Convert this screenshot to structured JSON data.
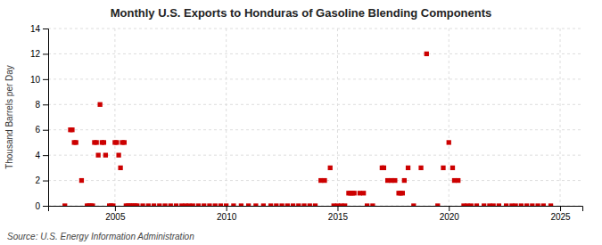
{
  "chart_data": {
    "type": "scatter",
    "title": "Monthly U.S. Exports to Honduras of Gasoline Blending Components",
    "y_label": "Thousand Barrels per Day",
    "annotations": [
      "Source: U.S. Energy Information Administration"
    ],
    "color": "#cc0000",
    "marker": "square",
    "grid": true,
    "xlim": [
      2002.0,
      2026.0
    ],
    "ylim": [
      0,
      14
    ],
    "xticks": [
      2005,
      2010,
      2015,
      2020,
      2025
    ],
    "yticks": [
      0,
      2,
      4,
      6,
      8,
      10,
      12,
      14
    ],
    "x": [
      2002.75,
      2003.0,
      2003.08,
      2003.17,
      2003.25,
      2003.5,
      2003.75,
      2003.83,
      2003.92,
      2004.0,
      2004.08,
      2004.17,
      2004.25,
      2004.33,
      2004.42,
      2004.5,
      2004.58,
      2004.75,
      2004.83,
      2004.92,
      2005.0,
      2005.08,
      2005.17,
      2005.25,
      2005.33,
      2005.42,
      2005.5,
      2005.58,
      2005.67,
      2005.75,
      2005.83,
      2005.92,
      2006.0,
      2006.25,
      2006.5,
      2006.75,
      2007.0,
      2007.25,
      2007.5,
      2007.75,
      2008.0,
      2008.17,
      2008.33,
      2008.5,
      2008.75,
      2009.0,
      2009.25,
      2009.5,
      2009.75,
      2010.0,
      2010.33,
      2010.67,
      2011.0,
      2011.33,
      2011.67,
      2012.0,
      2012.25,
      2012.5,
      2012.75,
      2013.0,
      2013.25,
      2013.5,
      2013.75,
      2014.0,
      2014.25,
      2014.42,
      2014.67,
      2014.83,
      2015.0,
      2015.17,
      2015.33,
      2015.5,
      2015.58,
      2015.67,
      2015.75,
      2016.0,
      2016.17,
      2016.33,
      2016.58,
      2017.0,
      2017.08,
      2017.25,
      2017.42,
      2017.58,
      2017.75,
      2017.83,
      2017.92,
      2018.0,
      2018.17,
      2018.42,
      2018.75,
      2019.0,
      2019.5,
      2019.75,
      2020.0,
      2020.17,
      2020.25,
      2020.42,
      2020.67,
      2020.83,
      2021.0,
      2021.25,
      2021.58,
      2021.83,
      2022.0,
      2022.25,
      2022.58,
      2022.83,
      2023.0,
      2023.25,
      2023.5,
      2023.75,
      2024.0,
      2024.25,
      2024.58
    ],
    "values": [
      0,
      6,
      6,
      5,
      5,
      2,
      0,
      0,
      0,
      0,
      5,
      5,
      4,
      8,
      5,
      5,
      4,
      0,
      0,
      0,
      5,
      5,
      4,
      3,
      5,
      5,
      0,
      0,
      0,
      0,
      0,
      0,
      0,
      0,
      0,
      0,
      0,
      0,
      0,
      0,
      0,
      0,
      0,
      0,
      0,
      0,
      0,
      0,
      0,
      0,
      0,
      0,
      0,
      0,
      0,
      0,
      0,
      0,
      0,
      0,
      0,
      0,
      0,
      0,
      2,
      2,
      3,
      0,
      0,
      0,
      0,
      1,
      1,
      1,
      1,
      1,
      1,
      0,
      0,
      3,
      3,
      2,
      2,
      2,
      1,
      1,
      1,
      2,
      3,
      0,
      3,
      12,
      0,
      3,
      5,
      3,
      2,
      2,
      0,
      0,
      0,
      0,
      0,
      0,
      0,
      0,
      0,
      0,
      0,
      0,
      0,
      0,
      0,
      0,
      0
    ]
  }
}
